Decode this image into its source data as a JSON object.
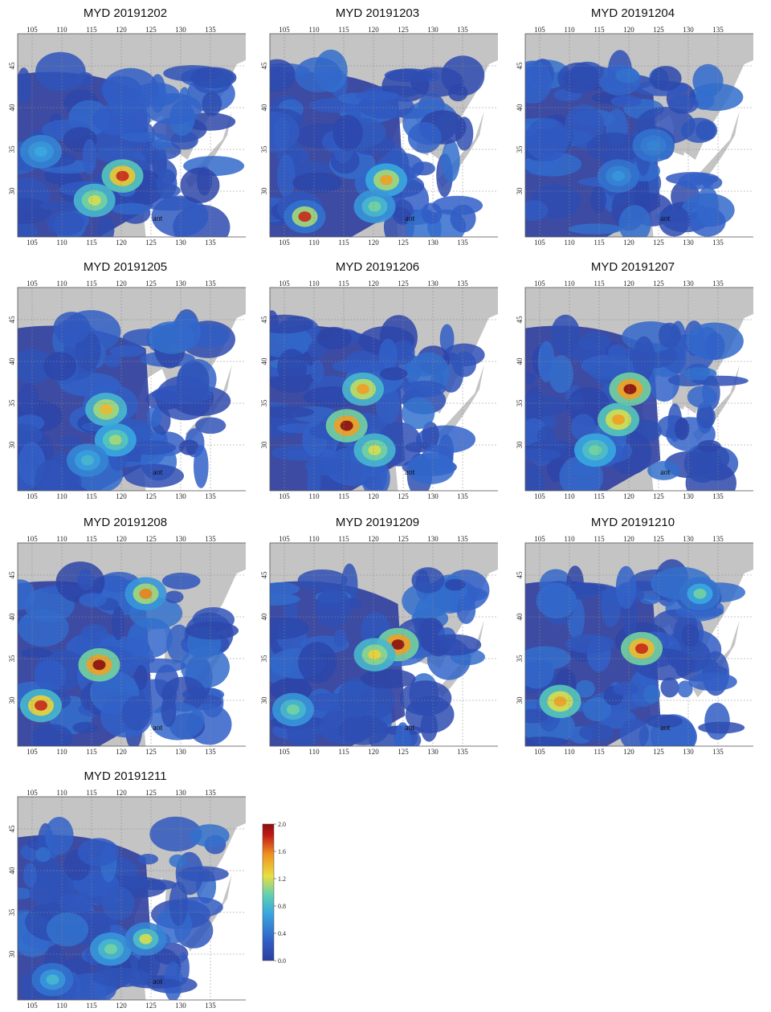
{
  "figure": {
    "panels": [
      {
        "title": "MYD 20191202",
        "aot_label": "aot",
        "hotspots": [
          [
            0.45,
            0.7,
            0.9,
            1.8
          ],
          [
            0.33,
            0.82,
            0.8,
            1.2
          ],
          [
            0.1,
            0.58,
            0.5,
            0.7
          ]
        ]
      },
      {
        "title": "MYD 20191203",
        "aot_label": "aot",
        "hotspots": [
          [
            0.5,
            0.72,
            0.7,
            1.5
          ],
          [
            0.45,
            0.85,
            0.6,
            1.0
          ],
          [
            0.15,
            0.9,
            0.4,
            1.8
          ]
        ]
      },
      {
        "title": "MYD 20191204",
        "aot_label": "aot",
        "hotspots": [
          [
            0.4,
            0.7,
            0.4,
            0.6
          ],
          [
            0.55,
            0.55,
            0.4,
            0.5
          ]
        ]
      },
      {
        "title": "MYD 20191205",
        "aot_label": "aot",
        "hotspots": [
          [
            0.38,
            0.6,
            0.8,
            1.4
          ],
          [
            0.42,
            0.75,
            0.7,
            1.1
          ],
          [
            0.3,
            0.85,
            0.5,
            0.8
          ]
        ]
      },
      {
        "title": "MYD 20191206",
        "aot_label": "aot",
        "hotspots": [
          [
            0.33,
            0.68,
            1.0,
            2.0
          ],
          [
            0.4,
            0.5,
            0.8,
            1.5
          ],
          [
            0.45,
            0.8,
            0.8,
            1.2
          ]
        ]
      },
      {
        "title": "MYD 20191207",
        "aot_label": "aot",
        "hotspots": [
          [
            0.45,
            0.5,
            1.0,
            2.0
          ],
          [
            0.4,
            0.65,
            0.9,
            1.5
          ],
          [
            0.3,
            0.8,
            0.7,
            1.0
          ]
        ]
      },
      {
        "title": "MYD 20191208",
        "aot_label": "aot",
        "hotspots": [
          [
            0.35,
            0.6,
            1.0,
            2.0
          ],
          [
            0.1,
            0.8,
            0.8,
            1.8
          ],
          [
            0.55,
            0.25,
            0.6,
            1.6
          ]
        ]
      },
      {
        "title": "MYD 20191209",
        "aot_label": "aot",
        "hotspots": [
          [
            0.55,
            0.5,
            1.0,
            2.0
          ],
          [
            0.45,
            0.55,
            0.8,
            1.3
          ],
          [
            0.1,
            0.82,
            0.6,
            1.0
          ]
        ]
      },
      {
        "title": "MYD 20191210",
        "aot_label": "aot",
        "hotspots": [
          [
            0.5,
            0.52,
            1.0,
            1.8
          ],
          [
            0.15,
            0.78,
            0.9,
            1.5
          ],
          [
            0.75,
            0.25,
            0.4,
            1.0
          ]
        ]
      },
      {
        "title": "MYD 20191211",
        "aot_label": "aot",
        "hotspots": [
          [
            0.4,
            0.75,
            0.6,
            1.0
          ],
          [
            0.55,
            0.7,
            0.5,
            1.2
          ],
          [
            0.15,
            0.9,
            0.4,
            0.8
          ]
        ]
      }
    ],
    "axes": {
      "lon_ticks": [
        "105",
        "110",
        "115",
        "120",
        "125",
        "130",
        "135"
      ],
      "lat_ticks": [
        "45",
        "40",
        "35",
        "30"
      ]
    },
    "colorbar": {
      "ticks": [
        "2.0",
        "1.6",
        "1.2",
        "0.8",
        "0.4",
        "0.0"
      ],
      "min": 0.0,
      "max": 2.0,
      "colormap": [
        "#2c3ea0",
        "#3160c8",
        "#39a8e0",
        "#60d0b0",
        "#e8e040",
        "#f09020",
        "#c01818",
        "#8a1010"
      ]
    },
    "colors": {
      "land": "#c4c4c4",
      "water": "#ffffff",
      "low_aot": "#2f3f9e"
    }
  }
}
